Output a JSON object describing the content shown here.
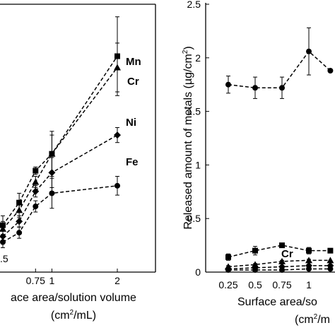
{
  "chart_data": [
    {
      "type": "line",
      "panel": "left",
      "xlabel_line1": "ace area/solution volume",
      "xlabel_unit_pre": "(cm",
      "xlabel_unit_sup": "2",
      "xlabel_unit_post": "/mL)",
      "x_tick_labels": [
        "0.75",
        "1",
        "2"
      ],
      "x_ticks": [
        0.75,
        1,
        2
      ],
      "partial_tick_label": ".5",
      "series": [
        {
          "name": "Mn",
          "marker": "square",
          "x": [
            0.25,
            0.5,
            0.75,
            1,
            2
          ],
          "y": [
            2.5,
            3.7,
            5.4,
            6.3,
            11.5
          ],
          "err": [
            0.5,
            0.5,
            0.2,
            1.2,
            2.1
          ]
        },
        {
          "name": "Cr",
          "marker": "triangle",
          "x": [
            0.25,
            0.5,
            0.75,
            1,
            2
          ],
          "y": [
            2.3,
            3.3,
            4.8,
            6.3,
            10.9
          ],
          "err": [
            0.4,
            0.4,
            0.3,
            1.0,
            1.3
          ]
        },
        {
          "name": "Ni",
          "marker": "diamond",
          "x": [
            0.25,
            0.5,
            0.75,
            1,
            2
          ],
          "y": [
            1.9,
            2.7,
            4.3,
            5.3,
            7.3
          ],
          "err": [
            0.3,
            0.3,
            0.3,
            0.8,
            0.4
          ]
        },
        {
          "name": "Fe",
          "marker": "circle",
          "x": [
            0.25,
            0.5,
            0.75,
            1,
            2
          ],
          "y": [
            1.6,
            2.1,
            3.5,
            4.2,
            4.6
          ],
          "err": [
            0.3,
            0.3,
            0.3,
            0.8,
            0.5
          ]
        }
      ]
    },
    {
      "type": "line",
      "panel": "right",
      "ylabel_pre": "Released amount of metals (µg/cm",
      "ylabel_sup": "2",
      "ylabel_post": ")",
      "xlabel_line1": "Surface area/so",
      "xlabel_unit_pre": "(cm",
      "xlabel_unit_sup": "2",
      "xlabel_unit_post": "/m",
      "ylim": [
        0,
        2.5
      ],
      "y_ticks": [
        0,
        0.5,
        1,
        1.5,
        2,
        2.5
      ],
      "y_tick_labels": [
        "0",
        "0.5",
        "1",
        "1.5",
        "2",
        "2.5"
      ],
      "x_ticks": [
        0.25,
        0.5,
        0.75,
        1
      ],
      "x_tick_labels": [
        "0.25",
        "0.5",
        "0.75",
        "1"
      ],
      "series": [
        {
          "name": "",
          "marker": "circle",
          "x": [
            0.25,
            0.5,
            0.75,
            1,
            1.2
          ],
          "y": [
            1.75,
            1.72,
            1.72,
            2.06,
            1.88
          ],
          "err": [
            0.08,
            0.1,
            0.1,
            0.22,
            0
          ]
        },
        {
          "name": "",
          "marker": "square",
          "x": [
            0.25,
            0.5,
            0.75,
            1,
            1.2
          ],
          "y": [
            0.14,
            0.2,
            0.25,
            0.2,
            0.2
          ],
          "err": [
            0.03,
            0.04,
            0.02,
            0.03,
            0
          ]
        },
        {
          "name": "Cr",
          "marker": "triangle",
          "x": [
            0.25,
            0.5,
            0.75,
            1,
            1.2
          ],
          "y": [
            0.05,
            0.07,
            0.1,
            0.11,
            0.11
          ],
          "err": [
            0.01,
            0.01,
            0.01,
            0.01,
            0
          ]
        },
        {
          "name": "",
          "marker": "diamond",
          "x": [
            0.25,
            0.5,
            0.75,
            1,
            1.2
          ],
          "y": [
            0.03,
            0.04,
            0.05,
            0.06,
            0.06
          ],
          "err": [
            0.01,
            0.01,
            0.01,
            0.01,
            0
          ]
        },
        {
          "name": "",
          "marker": "circle",
          "x": [
            0.25,
            0.5,
            0.75,
            1,
            1.2
          ],
          "y": [
            0.02,
            0.02,
            0.02,
            0.03,
            0.03
          ],
          "err": [
            0.01,
            0.01,
            0.01,
            0.01,
            0
          ]
        }
      ]
    }
  ]
}
